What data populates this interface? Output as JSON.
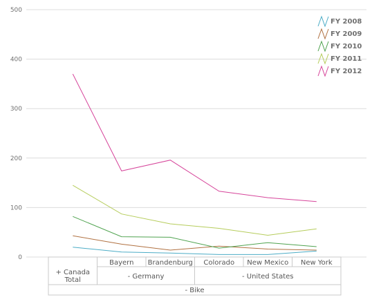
{
  "chart_data": {
    "type": "line",
    "title": "",
    "xlabel": "",
    "ylabel": "",
    "ylim": [
      0,
      500
    ],
    "yticks": [
      0,
      100,
      200,
      300,
      400,
      500
    ],
    "grid": true,
    "legend_position": "top-right",
    "categories": [
      "Canada Total",
      "Bayern",
      "Brandenburg",
      "Colorado",
      "New Mexico",
      "New York"
    ],
    "axis_table": {
      "level1": [
        {
          "label": "+ Canada\nTotal",
          "span": 1
        },
        {
          "label": "Bayern",
          "span": 1
        },
        {
          "label": "Brandenburg",
          "span": 1
        },
        {
          "label": "Colorado",
          "span": 1
        },
        {
          "label": "New Mexico",
          "span": 1
        },
        {
          "label": "New York",
          "span": 1
        }
      ],
      "level2": [
        {
          "label": "- Germany",
          "span": 2
        },
        {
          "label": "- United States",
          "span": 3
        }
      ],
      "level3": [
        {
          "label": "- Bike",
          "span": 6
        }
      ]
    },
    "series": [
      {
        "name": "FY 2008",
        "color": "#4BACC6",
        "values": [
          20,
          10,
          8,
          5,
          5,
          12
        ]
      },
      {
        "name": "FY 2009",
        "color": "#B07040",
        "values": [
          43,
          26,
          14,
          22,
          16,
          14
        ]
      },
      {
        "name": "FY 2010",
        "color": "#4EA24E",
        "values": [
          82,
          41,
          40,
          18,
          29,
          21
        ]
      },
      {
        "name": "FY 2011",
        "color": "#B5CC5A",
        "values": [
          145,
          87,
          67,
          58,
          44,
          57
        ]
      },
      {
        "name": "FY 2012",
        "color": "#D6449A",
        "values": [
          370,
          174,
          196,
          133,
          120,
          112
        ]
      }
    ]
  }
}
